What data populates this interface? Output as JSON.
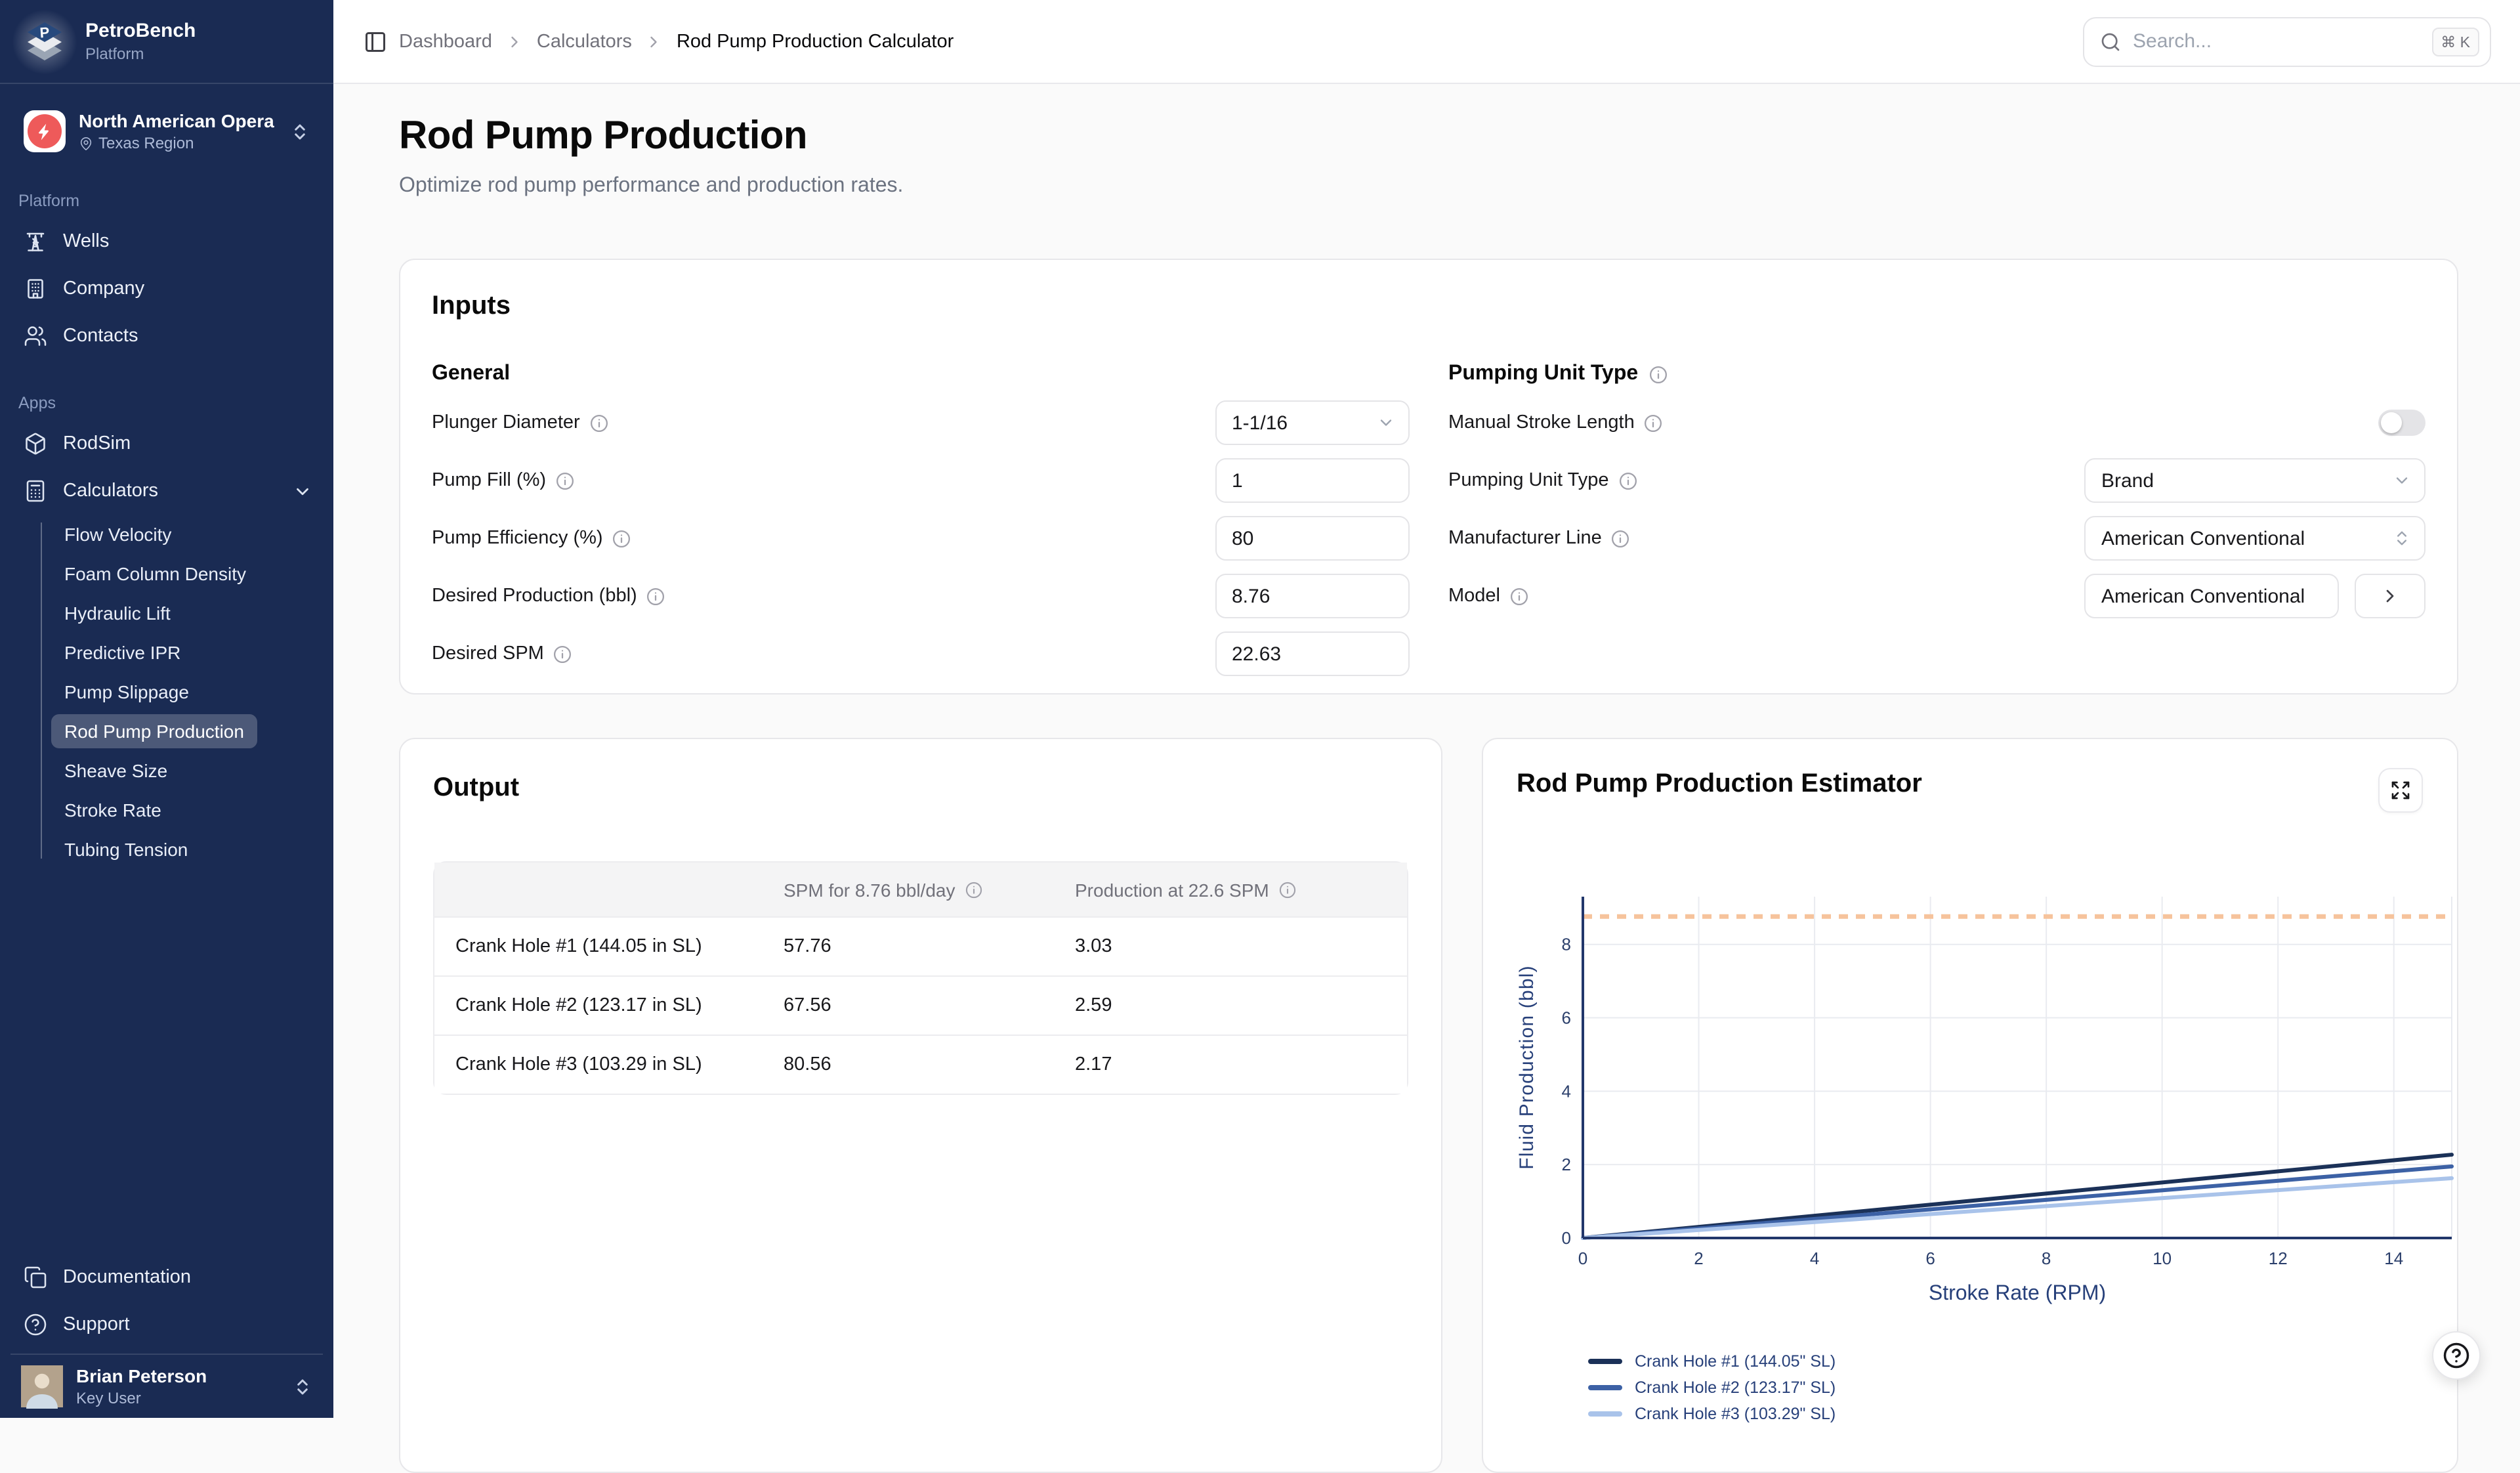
{
  "colors": {
    "sidebar_bg": "#1a2b53",
    "org_icon_red": "#ee5a5a",
    "axis_navy": "#27407a",
    "target_dash_orange": "#f6c39c",
    "series_colors": [
      "#1b3158",
      "#3c61a5",
      "#a9c3ea"
    ],
    "main_bg": "#fafafa"
  },
  "icons": {
    "logo": "layered-diamonds-P",
    "org": "lightning-bolt",
    "wells": "oil-derrick",
    "company": "building",
    "contacts": "users",
    "rodsim": "package-box",
    "calculators": "calculator",
    "documentation": "copy-pages",
    "support": "help-circle",
    "breadcrumb_toggle": "panel-left",
    "search": "magnifier",
    "info": "info-circle",
    "expand": "expand-arrows",
    "help_fab": "help-circle"
  },
  "sidebar": {
    "brand_name": "PetroBench",
    "brand_subtitle": "Platform",
    "org_name": "North American Opera",
    "org_region": "Texas Region",
    "platform_label": "Platform",
    "apps_label": "Apps",
    "item_wells": "Wells",
    "item_company": "Company",
    "item_contacts": "Contacts",
    "item_rodsim": "RodSim",
    "item_calculators": "Calculators",
    "calc_items": [
      "Flow Velocity",
      "Foam Column Density",
      "Hydraulic Lift",
      "Predictive IPR",
      "Pump Slippage",
      "Rod Pump Production",
      "Sheave Size",
      "Stroke Rate",
      "Tubing Tension"
    ],
    "active_calc": "Rod Pump Production",
    "item_documentation": "Documentation",
    "item_support": "Support",
    "user_name": "Brian Peterson",
    "user_role": "Key User"
  },
  "header": {
    "breadcrumb_1": "Dashboard",
    "breadcrumb_2": "Calculators",
    "breadcrumb_current": "Rod Pump Production Calculator",
    "search_placeholder": "Search...",
    "search_shortcut": "⌘ K"
  },
  "page": {
    "title": "Rod Pump Production",
    "subtitle": "Optimize rod pump performance and production rates."
  },
  "inputs": {
    "heading": "Inputs",
    "general": {
      "heading": "General",
      "plunger_label": "Plunger Diameter",
      "plunger_value": "1-1/16",
      "pump_fill_label": "Pump Fill (%)",
      "pump_fill_value": "1",
      "pump_eff_label": "Pump Efficiency (%)",
      "pump_eff_value": "80",
      "desired_prod_label": "Desired Production (bbl)",
      "desired_prod_value": "8.76",
      "desired_spm_label": "Desired SPM",
      "desired_spm_value": "22.63"
    },
    "pumping_unit": {
      "heading": "Pumping Unit Type",
      "manual_stroke_label": "Manual Stroke Length",
      "manual_stroke_enabled": false,
      "unit_type_label": "Pumping Unit Type",
      "unit_type_value": "Brand",
      "manufacturer_label": "Manufacturer Line",
      "manufacturer_value": "American Conventional",
      "model_label": "Model",
      "model_value": "American Conventional"
    }
  },
  "output": {
    "heading": "Output",
    "table": {
      "col_spm": "SPM for 8.76 bbl/day",
      "col_production": "Production at 22.6 SPM",
      "rows": [
        {
          "name": "Crank Hole #1 (144.05 in SL)",
          "spm": "57.76",
          "production": "3.03"
        },
        {
          "name": "Crank Hole #2 (123.17 in SL)",
          "spm": "67.56",
          "production": "2.59"
        },
        {
          "name": "Crank Hole #3 (103.29 in SL)",
          "spm": "80.56",
          "production": "2.17"
        }
      ]
    }
  },
  "chart": {
    "heading": "Rod Pump Production Estimator"
  },
  "chart_data": {
    "type": "line",
    "title": "Rod Pump Production Estimator",
    "xlabel": "Stroke Rate (RPM)",
    "ylabel": "Fluid Production (bbl)",
    "xlim": [
      0,
      15
    ],
    "ylim": [
      0,
      9.3
    ],
    "xticks": [
      0,
      2,
      4,
      6,
      8,
      10,
      12,
      14
    ],
    "yticks": [
      0,
      2,
      4,
      6,
      8
    ],
    "grid": true,
    "legend_position": "bottom-left",
    "target_line": {
      "y": 8.76,
      "style": "dashed",
      "color": "#f6c39c"
    },
    "series": [
      {
        "name": "Crank Hole #1 (144.05\" SL)",
        "color": "#1b3158",
        "x": [
          0,
          15
        ],
        "y": [
          0,
          2.27
        ]
      },
      {
        "name": "Crank Hole #2 (123.17\" SL)",
        "color": "#3c61a5",
        "x": [
          0,
          15
        ],
        "y": [
          0,
          1.95
        ]
      },
      {
        "name": "Crank Hole #3 (103.29\" SL)",
        "color": "#a9c3ea",
        "x": [
          0,
          15
        ],
        "y": [
          0,
          1.63
        ]
      }
    ]
  }
}
